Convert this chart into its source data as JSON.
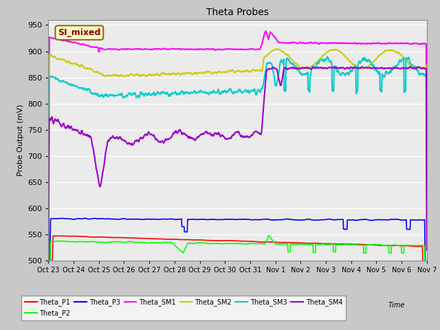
{
  "title": "Theta Probes",
  "ylabel": "Probe Output (mV)",
  "xlabel": "Time",
  "annotation": "SI_mixed",
  "annotation_color": "#8B0000",
  "annotation_bg": "#FFFFCC",
  "annotation_border": "#8B6914",
  "ylim": [
    500,
    960
  ],
  "yticks": [
    500,
    550,
    600,
    650,
    700,
    750,
    800,
    850,
    900,
    950
  ],
  "x_labels": [
    "Oct 23",
    "Oct 24",
    "Oct 25",
    "Oct 26",
    "Oct 27",
    "Oct 28",
    "Oct 29",
    "Oct 30",
    "Oct 31",
    "Nov 1",
    "Nov 2",
    "Nov 3",
    "Nov 4",
    "Nov 5",
    "Nov 6",
    "Nov 7"
  ],
  "series": {
    "Theta_P1": {
      "color": "#FF0000",
      "lw": 1.2
    },
    "Theta_P2": {
      "color": "#00FF00",
      "lw": 1.2
    },
    "Theta_P3": {
      "color": "#0000FF",
      "lw": 1.2
    },
    "Theta_SM1": {
      "color": "#FF00FF",
      "lw": 1.5
    },
    "Theta_SM2": {
      "color": "#CCCC00",
      "lw": 1.5
    },
    "Theta_SM3": {
      "color": "#00CCCC",
      "lw": 1.5
    },
    "Theta_SM4": {
      "color": "#9900CC",
      "lw": 1.5
    }
  }
}
